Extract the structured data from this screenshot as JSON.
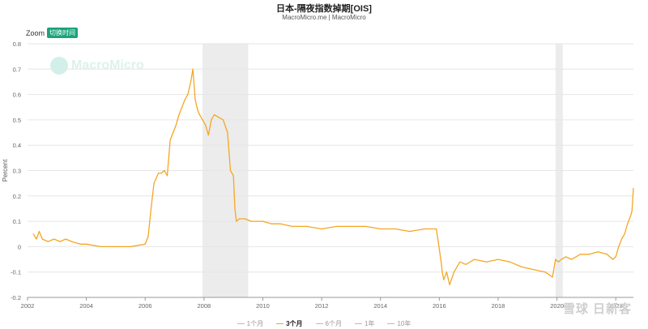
{
  "title": "日本-隔夜指数掉期[OIS]",
  "subtitle": "MacroMicro.me | MacroMicro",
  "zoom_label": "Zoom",
  "zoom_button": "切换时间",
  "watermark_text": "MacroMicro",
  "watermark_bottom": "雪球 日新客",
  "legend": [
    {
      "label": "1个月",
      "active": false
    },
    {
      "label": "3个月",
      "active": true
    },
    {
      "label": "6个月",
      "active": false
    },
    {
      "label": "1年",
      "active": false
    },
    {
      "label": "10年",
      "active": false
    }
  ],
  "chart_data": {
    "type": "line",
    "title": "日本-隔夜指数掉期[OIS]",
    "ylabel": "Percent",
    "xlabel": "",
    "xlim": [
      2002.0,
      2022.6
    ],
    "ylim": [
      -0.2,
      0.8
    ],
    "yticks": [
      -0.2,
      -0.1,
      0,
      0.1,
      0.2,
      0.3,
      0.4,
      0.5,
      0.6,
      0.7,
      0.8
    ],
    "xticks": [
      2002,
      2004,
      2006,
      2008,
      2010,
      2012,
      2014,
      2016,
      2018,
      2020,
      2022
    ],
    "grid": true,
    "legend_position": "bottom",
    "recessions": [
      [
        2007.95,
        2009.5
      ],
      [
        2019.95,
        2020.2
      ]
    ],
    "series": [
      {
        "name": "3个月",
        "color": "#f5a623",
        "x": [
          2002.2,
          2002.3,
          2002.4,
          2002.5,
          2002.7,
          2002.9,
          2003.1,
          2003.3,
          2003.5,
          2003.8,
          2004.0,
          2004.5,
          2005.0,
          2005.5,
          2006.0,
          2006.1,
          2006.2,
          2006.3,
          2006.45,
          2006.55,
          2006.65,
          2006.75,
          2006.85,
          2006.95,
          2007.05,
          2007.15,
          2007.25,
          2007.35,
          2007.45,
          2007.55,
          2007.62,
          2007.7,
          2007.78,
          2007.85,
          2007.95,
          2008.05,
          2008.15,
          2008.25,
          2008.35,
          2008.5,
          2008.65,
          2008.8,
          2008.9,
          2009.0,
          2009.05,
          2009.1,
          2009.2,
          2009.4,
          2009.6,
          2009.8,
          2010.0,
          2010.3,
          2010.6,
          2011.0,
          2011.5,
          2012.0,
          2012.5,
          2013.0,
          2013.5,
          2014.0,
          2014.5,
          2015.0,
          2015.5,
          2015.9,
          2016.05,
          2016.1,
          2016.15,
          2016.25,
          2016.35,
          2016.5,
          2016.7,
          2016.9,
          2017.2,
          2017.6,
          2018.0,
          2018.4,
          2018.8,
          2019.2,
          2019.6,
          2019.85,
          2019.95,
          2020.05,
          2020.15,
          2020.3,
          2020.5,
          2020.8,
          2021.1,
          2021.4,
          2021.7,
          2021.9,
          2022.0,
          2022.1,
          2022.2,
          2022.3,
          2022.4,
          2022.5,
          2022.55,
          2022.6
        ],
        "y": [
          0.05,
          0.03,
          0.06,
          0.03,
          0.02,
          0.03,
          0.02,
          0.03,
          0.02,
          0.01,
          0.01,
          0.0,
          0.0,
          0.0,
          0.01,
          0.04,
          0.15,
          0.25,
          0.29,
          0.29,
          0.3,
          0.28,
          0.42,
          0.45,
          0.48,
          0.52,
          0.55,
          0.58,
          0.6,
          0.65,
          0.7,
          0.58,
          0.54,
          0.52,
          0.5,
          0.48,
          0.44,
          0.5,
          0.52,
          0.51,
          0.5,
          0.45,
          0.3,
          0.28,
          0.15,
          0.1,
          0.11,
          0.11,
          0.1,
          0.1,
          0.1,
          0.09,
          0.09,
          0.08,
          0.08,
          0.07,
          0.08,
          0.08,
          0.08,
          0.07,
          0.07,
          0.06,
          0.07,
          0.07,
          -0.05,
          -0.1,
          -0.13,
          -0.1,
          -0.15,
          -0.1,
          -0.06,
          -0.07,
          -0.05,
          -0.06,
          -0.05,
          -0.06,
          -0.08,
          -0.09,
          -0.1,
          -0.12,
          -0.05,
          -0.06,
          -0.05,
          -0.04,
          -0.05,
          -0.03,
          -0.03,
          -0.02,
          -0.03,
          -0.05,
          -0.04,
          0.0,
          0.03,
          0.05,
          0.09,
          0.12,
          0.14,
          0.23
        ]
      }
    ]
  }
}
